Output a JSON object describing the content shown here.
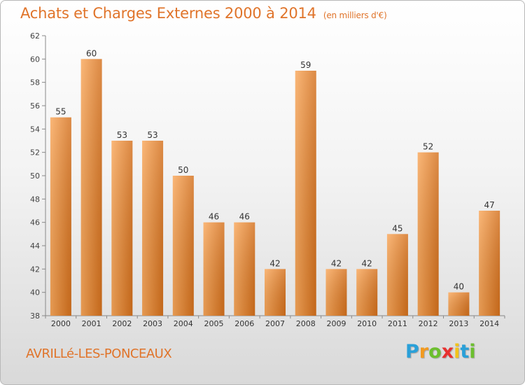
{
  "header": {
    "title": "Achats et Charges Externes 2000 à 2014",
    "subtitle": "(en milliers d'€)"
  },
  "commune": "AVRILLé-LES-PONCEAUX",
  "logo": {
    "letters": [
      "P",
      "r",
      "o",
      "x",
      "i",
      "t",
      "i"
    ],
    "colors": [
      "#2aa0d8",
      "#f29a1f",
      "#6cbf2e",
      "#e8302f",
      "#f2c31a",
      "#2aa0d8",
      "#6cbf2e"
    ]
  },
  "colors": {
    "bar_light": "#f9a75a",
    "bar_dark": "#d4701c",
    "accent": "#e0742a"
  },
  "chart_data": {
    "type": "bar",
    "categories": [
      "2000",
      "2001",
      "2002",
      "2003",
      "2004",
      "2005",
      "2006",
      "2007",
      "2008",
      "2009",
      "2010",
      "2011",
      "2012",
      "2013",
      "2014"
    ],
    "values": [
      55,
      60,
      53,
      53,
      50,
      46,
      46,
      42,
      59,
      42,
      42,
      45,
      52,
      40,
      47
    ],
    "ylim": [
      38,
      62
    ],
    "yticks": [
      38,
      40,
      42,
      44,
      46,
      48,
      50,
      52,
      54,
      56,
      58,
      60,
      62
    ],
    "grid": false,
    "data_labels": true
  }
}
